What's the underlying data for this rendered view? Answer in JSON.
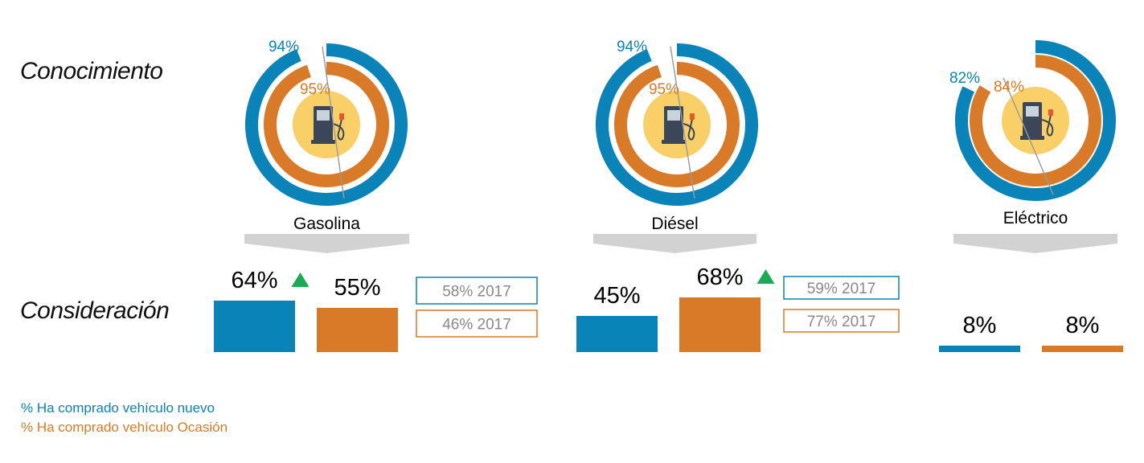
{
  "row_labels": {
    "awareness": "Conocimiento",
    "consideration": "Consideración"
  },
  "legend": {
    "new_label": "% Ha comprado vehículo nuevo",
    "used_label": "% Ha comprado vehículo Ocasión"
  },
  "colors": {
    "new": "#0a84b8",
    "used": "#d97a28",
    "icon_bg": "#f9d067",
    "arrow": "#d2d2d2",
    "up_arrow": "#1aaa55",
    "pump": "#3b4658"
  },
  "chart_data": {
    "type": "bar",
    "categories": [
      "Gasolina",
      "Diésel",
      "Eléctrico"
    ],
    "awareness": {
      "new": [
        94,
        94,
        82
      ],
      "used": [
        95,
        95,
        84
      ]
    },
    "consideration": {
      "new": [
        64,
        45,
        8
      ],
      "used": [
        55,
        68,
        8
      ]
    },
    "consideration_up_indicator": {
      "new": [
        true,
        false,
        false
      ],
      "used": [
        false,
        true,
        false
      ]
    },
    "comparison_2017": {
      "year": "2017",
      "new": [
        58,
        59,
        null
      ],
      "used": [
        46,
        77,
        null
      ]
    },
    "unit": "%"
  }
}
